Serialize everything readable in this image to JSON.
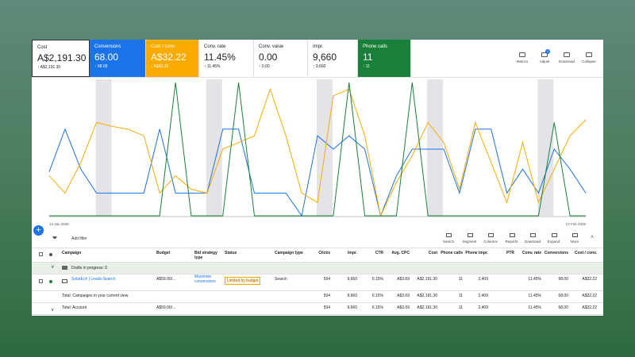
{
  "cards": [
    {
      "label": "Cost",
      "value": "A$2,191.30",
      "delta": "A$2,191.30",
      "color": "#ffffff"
    },
    {
      "label": "Conversions",
      "value": "68.00",
      "delta": "68.00",
      "color": "#1a73e8"
    },
    {
      "label": "Cost / conv.",
      "value": "A$32.22",
      "delta": "A$32.22",
      "color": "#f9ab00"
    },
    {
      "label": "Conv. rate",
      "value": "11.45%",
      "delta": "11.45%",
      "color": "#ffffff"
    },
    {
      "label": "Conv. value",
      "value": "0.00",
      "delta": "0.00",
      "color": "#ffffff"
    },
    {
      "label": "Impr.",
      "value": "9,660",
      "delta": "9,660",
      "color": "#ffffff"
    },
    {
      "label": "Phone calls",
      "value": "11",
      "delta": "11",
      "color": "#188038"
    }
  ],
  "chart_tools": [
    "Metrics",
    "Adjust",
    "Download",
    "Collapse"
  ],
  "adjust_badge": "1",
  "chart_data": {
    "type": "line",
    "x_labels": [
      "14 Jan 2026",
      "17 Feb 2026"
    ],
    "ylim": [
      0,
      100
    ],
    "series": [
      {
        "color": "#1a73e8",
        "values": [
          33,
          65,
          35,
          17,
          17,
          17,
          17,
          65,
          17,
          17,
          17,
          65,
          65,
          17,
          17,
          17,
          0,
          60,
          50,
          60,
          50,
          0,
          30,
          50,
          50,
          50,
          17,
          65,
          65,
          17,
          35,
          17,
          50,
          35,
          17
        ]
      },
      {
        "color": "#f9ab00",
        "values": [
          30,
          17,
          40,
          70,
          67,
          65,
          60,
          17,
          30,
          20,
          17,
          50,
          55,
          60,
          95,
          60,
          17,
          10,
          90,
          95,
          60,
          0,
          25,
          45,
          70,
          55,
          20,
          70,
          40,
          10,
          55,
          10,
          35,
          60,
          72
        ]
      },
      {
        "color": "#188038",
        "values": [
          0,
          0,
          0,
          0,
          0,
          0,
          0,
          0,
          100,
          0,
          0,
          0,
          100,
          0,
          0,
          0,
          0,
          0,
          0,
          100,
          0,
          0,
          0,
          100,
          0,
          0,
          0,
          0,
          0,
          0,
          0,
          0,
          70,
          0,
          0
        ]
      }
    ]
  },
  "toolbar": {
    "filter": "Add filter",
    "tools": [
      "Search",
      "Segment",
      "Columns",
      "Reports",
      "Download",
      "Expand",
      "More"
    ]
  },
  "table": {
    "headers": [
      "Campaign",
      "Budget",
      "Bid strategy type",
      "Status",
      "Campaign type",
      "Clicks",
      "Impr.",
      "CTR",
      "Avg. CPC",
      "Cost",
      "Phone calls",
      "Phone impr.",
      "PTR",
      "Conv. rate",
      "Conversions",
      "Cost / conv."
    ],
    "drafts": "Drafts in progress: 0",
    "rows": [
      [
        "SolarEch | Leads-Search",
        "A$59.00/...",
        "Maximise conversions",
        "Limited by budget",
        "Search",
        "594",
        "9,660",
        "6.15%",
        "A$3.69",
        "A$2,191.30",
        "11",
        "2,409",
        null,
        "11.45%",
        "68.00",
        "A$32.22"
      ],
      [
        "Total: Campaigns in your current view",
        null,
        null,
        null,
        null,
        "594",
        "9,660",
        "6.15%",
        "A$3.69",
        "A$2,191.30",
        "11",
        "2,409",
        null,
        "11.45%",
        "68.00",
        "A$32.22"
      ],
      [
        "Total: Account",
        "A$59.00/...",
        null,
        null,
        null,
        "594",
        "9,660",
        "6.15%",
        "A$3.69",
        "A$2,191.30",
        "11",
        "2,409",
        null,
        "11.45%",
        "68.00",
        "A$32.22"
      ]
    ]
  }
}
